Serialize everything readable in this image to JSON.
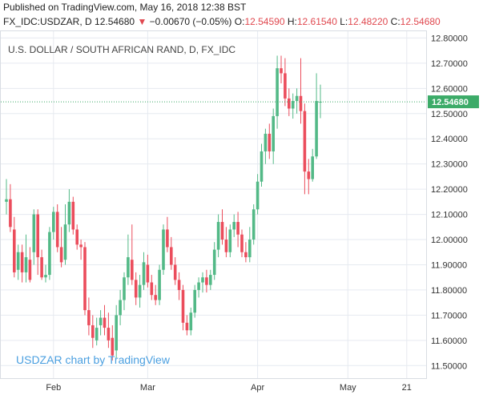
{
  "header": {
    "published": "Published on TradingView.com, May 16, 2018 12:38 BST",
    "symbol": "FX_IDC:USDZAR, D",
    "last": "12.54680",
    "change_arrow": "▼",
    "change": "−0.00670 (−0.05%)",
    "o_label": "O:",
    "o_value": "12.54590",
    "h_label": "H:",
    "h_value": "12.61540",
    "l_label": "L:",
    "l_value": "12.48220",
    "c_label": "C:",
    "c_value": "12.54680"
  },
  "colors": {
    "up": "#53b987",
    "down": "#eb4d5c",
    "grid": "#e6eaf0",
    "axis_text": "#333333",
    "price_label_bg": "#3cab68",
    "watermark": "#4a9fe0"
  },
  "chart_data": {
    "type": "candlestick",
    "title": "U.S. DOLLAR / SOUTH AFRICAN RAND, D, FX_IDC",
    "watermark": "USDZAR chart by TradingView",
    "last_price_label": "12.54680",
    "last_price": 12.5468,
    "ylim": [
      11.45,
      12.83
    ],
    "yticks": [
      {
        "value": 11.5,
        "label": "11.50000"
      },
      {
        "value": 11.6,
        "label": "11.60000"
      },
      {
        "value": 11.7,
        "label": "11.70000"
      },
      {
        "value": 11.8,
        "label": "11.80000"
      },
      {
        "value": 11.9,
        "label": "11.90000"
      },
      {
        "value": 12.0,
        "label": "12.00000"
      },
      {
        "value": 12.1,
        "label": "12.10000"
      },
      {
        "value": 12.2,
        "label": "12.20000"
      },
      {
        "value": 12.3,
        "label": "12.30000"
      },
      {
        "value": 12.4,
        "label": "12.40000"
      },
      {
        "value": 12.5,
        "label": "12.50000"
      },
      {
        "value": 12.6,
        "label": "12.60000"
      },
      {
        "value": 12.7,
        "label": "12.70000"
      },
      {
        "value": 12.8,
        "label": "12.80000"
      }
    ],
    "xticks": [
      {
        "index": 12,
        "label": "Feb"
      },
      {
        "index": 36,
        "label": "Mar"
      },
      {
        "index": 64,
        "label": "Apr"
      },
      {
        "index": 87,
        "label": "May"
      },
      {
        "index": 102,
        "label": "21"
      }
    ],
    "candles": [
      {
        "o": 12.15,
        "h": 12.24,
        "l": 12.1,
        "c": 12.16
      },
      {
        "o": 12.16,
        "h": 12.22,
        "l": 12.03,
        "c": 12.05
      },
      {
        "o": 12.04,
        "h": 12.09,
        "l": 11.85,
        "c": 11.87
      },
      {
        "o": 11.88,
        "h": 11.98,
        "l": 11.84,
        "c": 11.95
      },
      {
        "o": 11.95,
        "h": 11.98,
        "l": 11.83,
        "c": 11.87
      },
      {
        "o": 11.87,
        "h": 12.02,
        "l": 11.83,
        "c": 11.93
      },
      {
        "o": 11.92,
        "h": 11.97,
        "l": 11.83,
        "c": 11.84
      },
      {
        "o": 11.95,
        "h": 12.12,
        "l": 11.9,
        "c": 12.1
      },
      {
        "o": 12.1,
        "h": 12.12,
        "l": 11.86,
        "c": 11.93
      },
      {
        "o": 11.93,
        "h": 11.96,
        "l": 11.84,
        "c": 11.85
      },
      {
        "o": 11.85,
        "h": 11.9,
        "l": 11.83,
        "c": 11.86
      },
      {
        "o": 11.86,
        "h": 12.05,
        "l": 11.84,
        "c": 12.03
      },
      {
        "o": 12.03,
        "h": 12.13,
        "l": 12.0,
        "c": 12.11
      },
      {
        "o": 12.11,
        "h": 12.14,
        "l": 11.95,
        "c": 11.97
      },
      {
        "o": 11.97,
        "h": 12.05,
        "l": 11.89,
        "c": 11.91
      },
      {
        "o": 11.92,
        "h": 12.14,
        "l": 11.9,
        "c": 12.06
      },
      {
        "o": 12.06,
        "h": 12.2,
        "l": 12.03,
        "c": 12.15
      },
      {
        "o": 12.15,
        "h": 12.17,
        "l": 12.02,
        "c": 12.04
      },
      {
        "o": 12.04,
        "h": 12.06,
        "l": 11.96,
        "c": 11.98
      },
      {
        "o": 11.98,
        "h": 12.0,
        "l": 11.92,
        "c": 11.97
      },
      {
        "o": 11.97,
        "h": 11.99,
        "l": 11.7,
        "c": 11.72
      },
      {
        "o": 11.72,
        "h": 11.77,
        "l": 11.62,
        "c": 11.66
      },
      {
        "o": 11.66,
        "h": 11.7,
        "l": 11.57,
        "c": 11.61
      },
      {
        "o": 11.6,
        "h": 11.69,
        "l": 11.58,
        "c": 11.65
      },
      {
        "o": 11.66,
        "h": 11.72,
        "l": 11.62,
        "c": 11.69
      },
      {
        "o": 11.69,
        "h": 11.74,
        "l": 11.62,
        "c": 11.65
      },
      {
        "o": 11.65,
        "h": 11.71,
        "l": 11.57,
        "c": 11.6
      },
      {
        "o": 11.61,
        "h": 11.66,
        "l": 11.52,
        "c": 11.54
      },
      {
        "o": 11.56,
        "h": 11.74,
        "l": 11.53,
        "c": 11.7
      },
      {
        "o": 11.7,
        "h": 11.8,
        "l": 11.66,
        "c": 11.76
      },
      {
        "o": 11.76,
        "h": 11.87,
        "l": 11.72,
        "c": 11.85
      },
      {
        "o": 11.85,
        "h": 12.02,
        "l": 11.82,
        "c": 11.93
      },
      {
        "o": 11.92,
        "h": 12.06,
        "l": 11.82,
        "c": 11.84
      },
      {
        "o": 11.84,
        "h": 11.87,
        "l": 11.74,
        "c": 11.77
      },
      {
        "o": 11.77,
        "h": 11.86,
        "l": 11.73,
        "c": 11.82
      },
      {
        "o": 11.82,
        "h": 11.95,
        "l": 11.8,
        "c": 11.91
      },
      {
        "o": 11.9,
        "h": 11.94,
        "l": 11.81,
        "c": 11.83
      },
      {
        "o": 11.83,
        "h": 11.86,
        "l": 11.76,
        "c": 11.78
      },
      {
        "o": 11.78,
        "h": 11.82,
        "l": 11.74,
        "c": 11.76
      },
      {
        "o": 11.76,
        "h": 11.9,
        "l": 11.74,
        "c": 11.88
      },
      {
        "o": 11.88,
        "h": 12.06,
        "l": 11.86,
        "c": 12.04
      },
      {
        "o": 12.04,
        "h": 12.09,
        "l": 11.95,
        "c": 11.97
      },
      {
        "o": 11.97,
        "h": 12.01,
        "l": 11.88,
        "c": 11.9
      },
      {
        "o": 11.9,
        "h": 11.93,
        "l": 11.82,
        "c": 11.84
      },
      {
        "o": 11.84,
        "h": 11.87,
        "l": 11.76,
        "c": 11.8
      },
      {
        "o": 11.8,
        "h": 11.82,
        "l": 11.64,
        "c": 11.67
      },
      {
        "o": 11.67,
        "h": 11.7,
        "l": 11.62,
        "c": 11.64
      },
      {
        "o": 11.64,
        "h": 11.73,
        "l": 11.62,
        "c": 11.71
      },
      {
        "o": 11.71,
        "h": 11.82,
        "l": 11.69,
        "c": 11.8
      },
      {
        "o": 11.8,
        "h": 11.85,
        "l": 11.77,
        "c": 11.83
      },
      {
        "o": 11.83,
        "h": 11.87,
        "l": 11.79,
        "c": 11.85
      },
      {
        "o": 11.85,
        "h": 11.88,
        "l": 11.79,
        "c": 11.82
      },
      {
        "o": 11.82,
        "h": 11.88,
        "l": 11.8,
        "c": 11.86
      },
      {
        "o": 11.86,
        "h": 11.99,
        "l": 11.84,
        "c": 11.96
      },
      {
        "o": 11.96,
        "h": 12.1,
        "l": 11.93,
        "c": 12.07
      },
      {
        "o": 12.07,
        "h": 12.12,
        "l": 11.98,
        "c": 12.0
      },
      {
        "o": 12.0,
        "h": 12.05,
        "l": 11.93,
        "c": 11.95
      },
      {
        "o": 11.95,
        "h": 12.06,
        "l": 11.93,
        "c": 12.04
      },
      {
        "o": 12.04,
        "h": 12.1,
        "l": 12.01,
        "c": 12.07
      },
      {
        "o": 12.07,
        "h": 12.11,
        "l": 11.97,
        "c": 12.02
      },
      {
        "o": 12.02,
        "h": 12.04,
        "l": 11.93,
        "c": 11.95
      },
      {
        "o": 11.95,
        "h": 11.99,
        "l": 11.91,
        "c": 11.93
      },
      {
        "o": 11.93,
        "h": 12.05,
        "l": 11.91,
        "c": 12.0
      },
      {
        "o": 12.0,
        "h": 12.14,
        "l": 11.98,
        "c": 12.12
      },
      {
        "o": 12.12,
        "h": 12.26,
        "l": 12.1,
        "c": 12.23
      },
      {
        "o": 12.23,
        "h": 12.38,
        "l": 12.21,
        "c": 12.35
      },
      {
        "o": 12.35,
        "h": 12.44,
        "l": 12.3,
        "c": 12.42
      },
      {
        "o": 12.42,
        "h": 12.46,
        "l": 12.32,
        "c": 12.35
      },
      {
        "o": 12.35,
        "h": 12.52,
        "l": 12.3,
        "c": 12.49
      },
      {
        "o": 12.49,
        "h": 12.73,
        "l": 12.44,
        "c": 12.68
      },
      {
        "o": 12.68,
        "h": 12.73,
        "l": 12.62,
        "c": 12.66
      },
      {
        "o": 12.66,
        "h": 12.72,
        "l": 12.53,
        "c": 12.56
      },
      {
        "o": 12.56,
        "h": 12.6,
        "l": 12.49,
        "c": 12.52
      },
      {
        "o": 12.52,
        "h": 12.58,
        "l": 12.48,
        "c": 12.55
      },
      {
        "o": 12.55,
        "h": 12.6,
        "l": 12.5,
        "c": 12.57
      },
      {
        "o": 12.57,
        "h": 12.72,
        "l": 12.46,
        "c": 12.51
      },
      {
        "o": 12.51,
        "h": 12.54,
        "l": 12.18,
        "c": 12.27
      },
      {
        "o": 12.27,
        "h": 12.32,
        "l": 12.18,
        "c": 12.24
      },
      {
        "o": 12.24,
        "h": 12.36,
        "l": 12.23,
        "c": 12.33
      },
      {
        "o": 12.33,
        "h": 12.66,
        "l": 12.32,
        "c": 12.55
      },
      {
        "o": 12.546,
        "h": 12.615,
        "l": 12.482,
        "c": 12.547
      }
    ]
  }
}
